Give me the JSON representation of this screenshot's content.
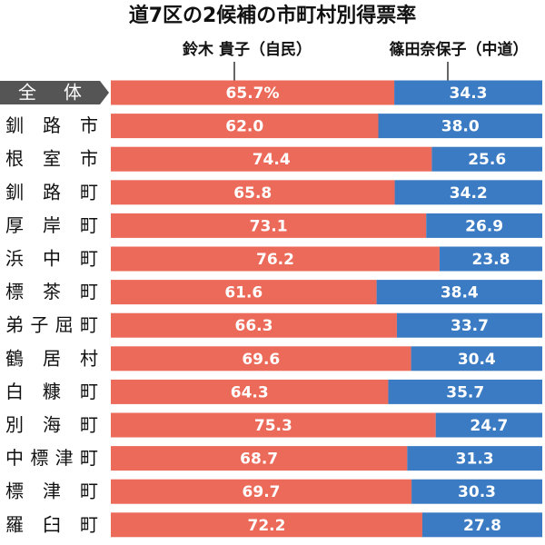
{
  "chart_data": {
    "type": "stacked-bar",
    "orientation": "horizontal",
    "title": "道7区の2候補の市町村別得票率",
    "categories": [
      "全体",
      "釧路市",
      "根室市",
      "釧路町",
      "厚岸町",
      "浜中町",
      "標茶町",
      "弟子屈町",
      "鶴居村",
      "白糠町",
      "別海町",
      "中標津町",
      "標津町",
      "羅臼町"
    ],
    "xlim": [
      0,
      100
    ],
    "series": [
      {
        "name": "鈴木 貴子（自民）",
        "color": "#ec6a5a",
        "values": [
          65.7,
          62.0,
          74.4,
          65.8,
          73.1,
          76.2,
          61.6,
          66.3,
          69.6,
          64.3,
          75.3,
          68.7,
          69.7,
          72.2
        ],
        "value_labels": [
          "65.7%",
          "62.0",
          "74.4",
          "65.8",
          "73.1",
          "76.2",
          "61.6",
          "66.3",
          "69.6",
          "64.3",
          "75.3",
          "68.7",
          "69.7",
          "72.2"
        ]
      },
      {
        "name": "篠田奈保子（中道）",
        "color": "#3b7bc3",
        "values": [
          34.3,
          38.0,
          25.6,
          34.2,
          26.9,
          23.8,
          38.4,
          33.7,
          30.4,
          35.7,
          24.7,
          31.3,
          30.3,
          27.8
        ],
        "value_labels": [
          "34.3",
          "38.0",
          "25.6",
          "34.2",
          "26.9",
          "23.8",
          "38.4",
          "33.7",
          "30.4",
          "35.7",
          "24.7",
          "31.3",
          "30.3",
          "27.8"
        ]
      }
    ]
  }
}
